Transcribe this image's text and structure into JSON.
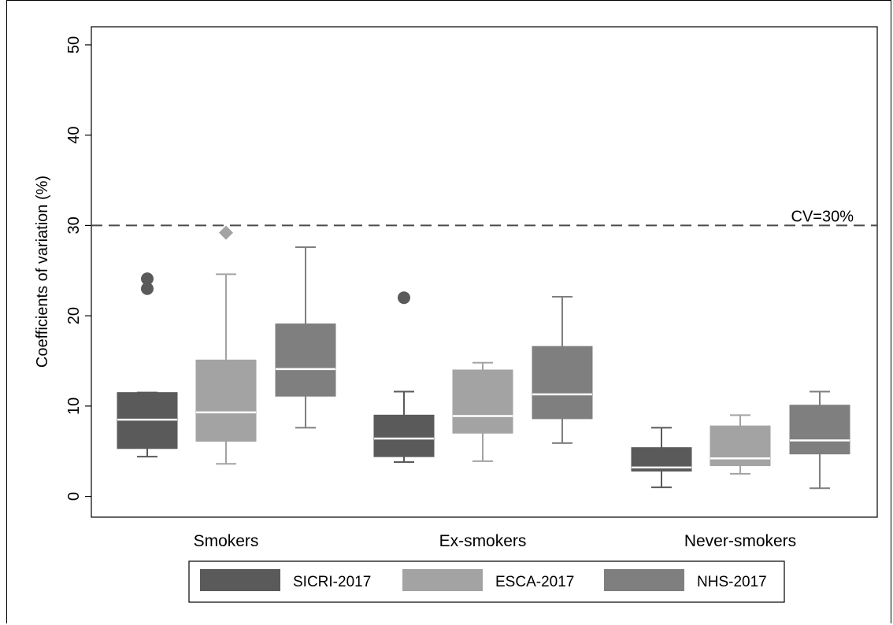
{
  "chart_data": {
    "type": "box",
    "ylabel": "Coefficients of variation (%)",
    "xlabel": "",
    "ylim": [
      -2.3,
      52
    ],
    "yticks": [
      0,
      10,
      20,
      30,
      40,
      50
    ],
    "categories": [
      "Smokers",
      "Ex-smokers",
      "Never-smokers"
    ],
    "reference_line": {
      "value": 30,
      "label": "CV=30%",
      "style": "dashed"
    },
    "legend": {
      "position": "bottom"
    },
    "colors": {
      "SICRI-2017": "#5a5a5a",
      "ESCA-2017": "#a3a3a3",
      "NHS-2017": "#7f7f7f",
      "median": "#ffffff"
    },
    "series": [
      {
        "name": "SICRI-2017",
        "marker": "circle",
        "boxes": [
          {
            "whisker_low": 4.4,
            "q1": 5.3,
            "median": 8.5,
            "q3": 11.5,
            "whisker_high": 11.5,
            "outliers": [
              23.0,
              24.1
            ]
          },
          {
            "whisker_low": 3.8,
            "q1": 4.4,
            "median": 6.4,
            "q3": 9.0,
            "whisker_high": 11.6,
            "outliers": [
              22.0
            ]
          },
          {
            "whisker_low": 1.0,
            "q1": 2.8,
            "median": 3.2,
            "q3": 5.4,
            "whisker_high": 7.6,
            "outliers": []
          }
        ]
      },
      {
        "name": "ESCA-2017",
        "marker": "diamond",
        "boxes": [
          {
            "whisker_low": 3.6,
            "q1": 6.1,
            "median": 9.3,
            "q3": 15.1,
            "whisker_high": 24.6,
            "outliers": [
              29.2
            ]
          },
          {
            "whisker_low": 3.9,
            "q1": 7.0,
            "median": 8.9,
            "q3": 14.0,
            "whisker_high": 14.8,
            "outliers": []
          },
          {
            "whisker_low": 2.5,
            "q1": 3.4,
            "median": 4.2,
            "q3": 7.8,
            "whisker_high": 9.0,
            "outliers": []
          }
        ]
      },
      {
        "name": "NHS-2017",
        "marker": "square",
        "boxes": [
          {
            "whisker_low": 7.6,
            "q1": 11.1,
            "median": 14.1,
            "q3": 19.1,
            "whisker_high": 27.6,
            "outliers": []
          },
          {
            "whisker_low": 5.9,
            "q1": 8.6,
            "median": 11.3,
            "q3": 16.6,
            "whisker_high": 22.1,
            "outliers": []
          },
          {
            "whisker_low": 0.9,
            "q1": 4.7,
            "median": 6.2,
            "q3": 10.1,
            "whisker_high": 11.6,
            "outliers": []
          }
        ]
      }
    ]
  }
}
